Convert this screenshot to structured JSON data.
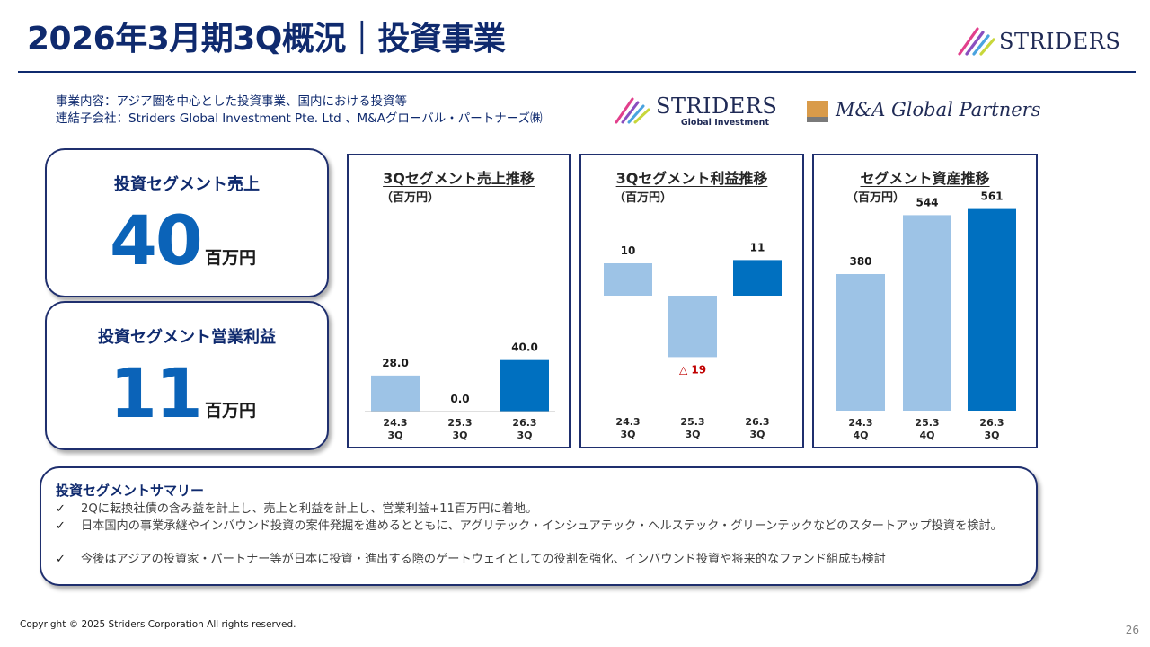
{
  "page": {
    "title": "2026年3月期3Q概況｜投資事業",
    "brand_word": "STRIDERS",
    "page_number": "26",
    "copyright": "Copyright © 2025 Striders Corporation All rights reserved."
  },
  "intro": {
    "business": "事業内容：アジア圏を中心とした投資事業、国内における投資等",
    "subsidiaries": "連結子会社：Striders Global Investment Pte. Ltd 、M&Aグローバル・パートナーズ㈱"
  },
  "logos": {
    "sgi_word": "STRIDERS",
    "sgi_sub": "Global Investment",
    "mag_word": "M&A Global Partners"
  },
  "kpis": [
    {
      "label": "投資セグメント売上",
      "value": "40",
      "unit": "百万円"
    },
    {
      "label": "投資セグメント営業利益",
      "value": "11",
      "unit": "百万円"
    }
  ],
  "colors": {
    "navy": "#0f2a6e",
    "accent": "#0b63b8",
    "bar_light": "#9dc3e6",
    "bar_dark": "#0070c0",
    "negative": "#c00000"
  },
  "chart_data": [
    {
      "type": "bar",
      "title": "3Qセグメント売上推移",
      "unit": "（百万円）",
      "categories": [
        "24.3\n3Q",
        "25.3\n3Q",
        "26.3\n3Q"
      ],
      "values": [
        28.0,
        0.0,
        40.0
      ],
      "value_labels": [
        "28.0",
        "0.0",
        "40.0"
      ],
      "ylim": [
        0,
        150
      ]
    },
    {
      "type": "bar",
      "title": "3Qセグメント利益推移",
      "unit": "（百万円）",
      "categories": [
        "24.3\n3Q",
        "25.3\n3Q",
        "26.3\n3Q"
      ],
      "values": [
        10,
        -19,
        11
      ],
      "value_labels": [
        "10",
        "△ 19",
        "11"
      ],
      "ylim": [
        -25,
        15
      ]
    },
    {
      "type": "bar",
      "title": "セグメント資産推移",
      "unit": "（百万円）",
      "categories": [
        "24.3\n4Q",
        "25.3\n4Q",
        "26.3\n3Q"
      ],
      "values": [
        380,
        544,
        561
      ],
      "value_labels": [
        "380",
        "544",
        "561"
      ],
      "ylim": [
        0,
        600
      ]
    }
  ],
  "summary": {
    "title": "投資セグメントサマリー",
    "items": [
      "2Qに転換社債の含み益を計上し、売上と利益を計上し、営業利益+11百万円に着地。",
      "日本国内の事業承継やインバウンド投資の案件発掘を進めるとともに、アグリテック・インシュアテック・ヘルステック・グリーンテックなどのスタートアップ投資を検討。",
      "今後はアジアの投資家・パートナー等が日本に投資・進出する際のゲートウェイとしての役割を強化、インバウンド投資や将来的なファンド組成も検討"
    ]
  }
}
